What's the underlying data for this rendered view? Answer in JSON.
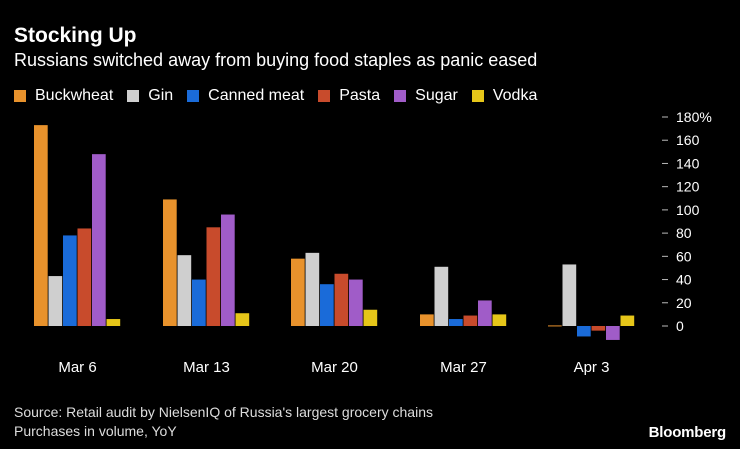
{
  "chart_data": {
    "type": "bar",
    "title": "Stocking Up",
    "subtitle": "Russians switched away from buying food staples as panic eased",
    "categories": [
      "Mar 6",
      "Mar 13",
      "Mar 20",
      "Mar 27",
      "Apr 3"
    ],
    "series": [
      {
        "name": "Buckwheat",
        "color": "#e8922c",
        "values": [
          173,
          109,
          58,
          10,
          0.5
        ]
      },
      {
        "name": "Gin",
        "color": "#cfcfcf",
        "values": [
          43,
          61,
          63,
          51,
          53
        ]
      },
      {
        "name": "Canned meat",
        "color": "#1a6bd9",
        "values": [
          78,
          40,
          36,
          6,
          -9
        ]
      },
      {
        "name": "Pasta",
        "color": "#c84b2c",
        "values": [
          84,
          85,
          45,
          9,
          -4
        ]
      },
      {
        "name": "Sugar",
        "color": "#a05cc8",
        "values": [
          148,
          96,
          40,
          22,
          -12
        ]
      },
      {
        "name": "Vodka",
        "color": "#e6c619",
        "values": [
          6,
          11,
          14,
          10,
          9
        ]
      }
    ],
    "yticks": [
      0,
      20,
      40,
      60,
      80,
      100,
      120,
      140,
      160,
      180
    ],
    "ytick_labels": [
      "0",
      "20",
      "40",
      "60",
      "80",
      "100",
      "120",
      "140",
      "160",
      "180%"
    ],
    "ylim": [
      -15,
      180
    ],
    "ylabel": "",
    "xlabel": ""
  },
  "footer": {
    "source": "Source: Retail audit by NielsenIQ of Russia's largest grocery chains",
    "note": "Purchases in volume, YoY",
    "brand": "Bloomberg"
  }
}
